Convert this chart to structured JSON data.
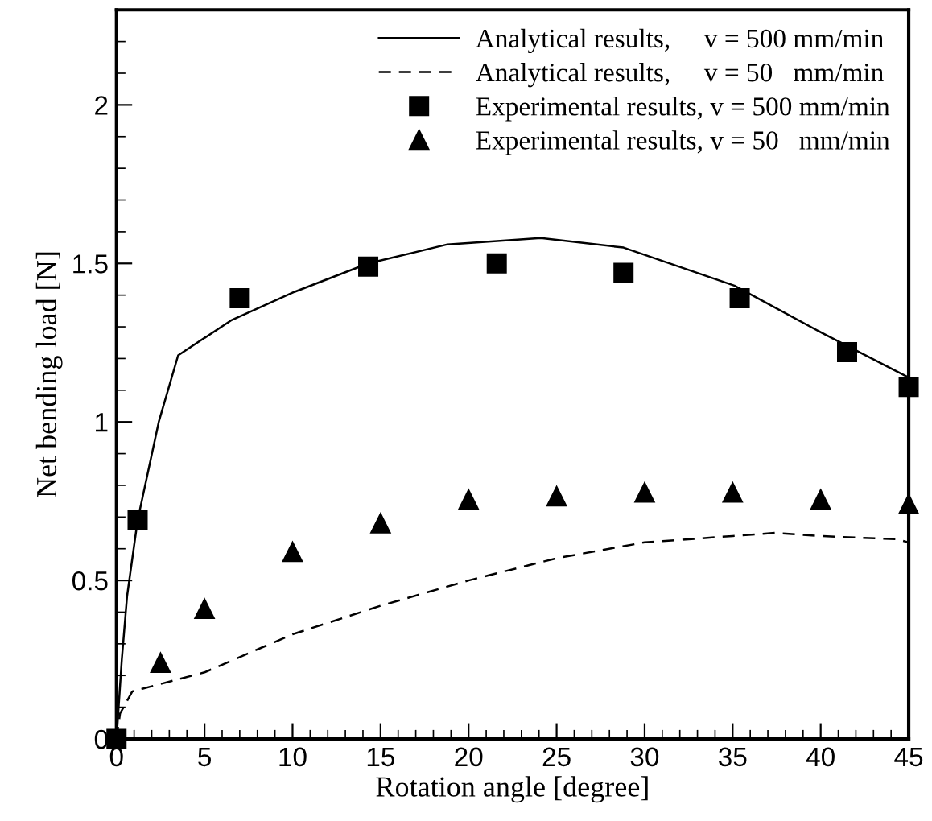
{
  "chart_data": {
    "type": "line",
    "xlabel": "Rotation angle [degree]",
    "ylabel": "Net bending load [N]",
    "xlim": [
      0,
      45
    ],
    "xticks": [
      0,
      5,
      10,
      15,
      20,
      25,
      30,
      35,
      40,
      45
    ],
    "ylim": [
      0,
      2.3
    ],
    "yticks": [
      0,
      0.5,
      1,
      1.5,
      2
    ],
    "grid": false,
    "legend": "top right",
    "series": [
      {
        "name": "Analytical results,     v = 500 mm/min",
        "line_style": "solid",
        "marker": "none",
        "color": "#000000",
        "x": [
          0,
          0.3,
          0.6,
          1.2,
          2.4,
          3.5,
          6.5,
          10.1,
          14.3,
          18.8,
          24.1,
          28.8,
          35.1,
          40.1,
          45
        ],
        "values": [
          0,
          0.25,
          0.45,
          0.69,
          1.0,
          1.21,
          1.32,
          1.41,
          1.5,
          1.56,
          1.58,
          1.55,
          1.43,
          1.28,
          1.14
        ]
      },
      {
        "name": "Analytical results,     v = 50   mm/min",
        "line_style": "dashed",
        "marker": "none",
        "color": "#000000",
        "x": [
          0,
          0.2,
          0.9,
          5,
          10,
          15,
          20,
          25,
          30,
          35,
          37.4,
          40,
          44.3,
          45
        ],
        "values": [
          0,
          0.08,
          0.15,
          0.21,
          0.33,
          0.42,
          0.5,
          0.57,
          0.62,
          0.64,
          0.65,
          0.64,
          0.63,
          0.62
        ]
      },
      {
        "name": "Experimental results, v = 500 mm/min",
        "type": "scatter",
        "marker": "square",
        "color": "#000000",
        "x": [
          0,
          1.2,
          7,
          14.3,
          21.6,
          28.8,
          35.4,
          41.5,
          45
        ],
        "values": [
          0,
          0.69,
          1.39,
          1.49,
          1.5,
          1.47,
          1.39,
          1.22,
          1.11
        ]
      },
      {
        "name": "Experimental results, v = 50   mm/min",
        "type": "scatter",
        "marker": "triangle",
        "color": "#000000",
        "x": [
          2.5,
          5,
          10,
          15,
          20,
          25,
          30,
          35,
          40,
          45
        ],
        "values": [
          0.24,
          0.41,
          0.59,
          0.68,
          0.755,
          0.765,
          0.777,
          0.777,
          0.755,
          0.74
        ]
      }
    ]
  }
}
